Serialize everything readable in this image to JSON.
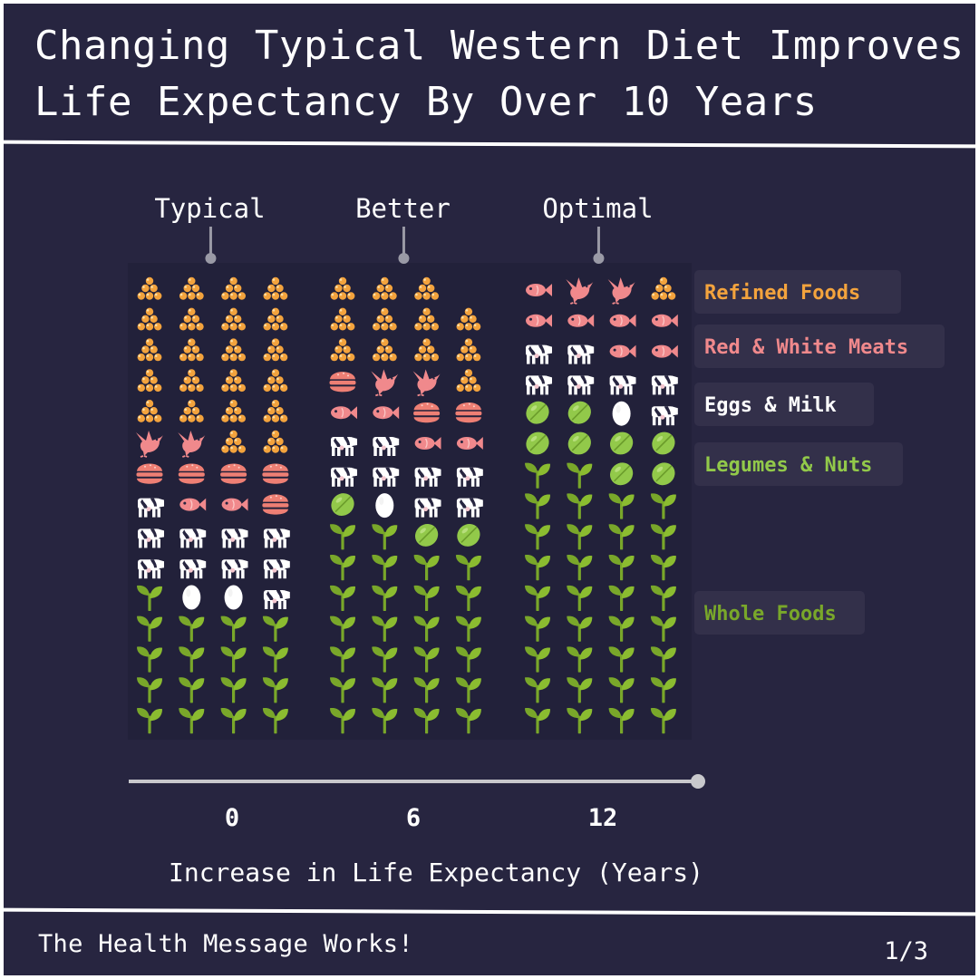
{
  "title_line1": "Changing Typical Western Diet Improves",
  "title_line2": "Life Expectancy By Over 10 Years",
  "footer": "The Health Message Works!",
  "page": "1/3",
  "chart_data": {
    "type": "waffle",
    "xlabel": "Increase in Life Expectancy (Years)",
    "x_ticks": [
      0,
      6,
      12
    ],
    "x_max": 12.5,
    "rows": 15,
    "cols_per_group": 4,
    "categories": [
      {
        "key": "refined",
        "name": "Refined Foods",
        "color": "#f3a33d",
        "icon": "grain-pile-icon"
      },
      {
        "key": "meat",
        "name": "Red & White Meats",
        "color": "#f0898c",
        "icon": "meat-icon"
      },
      {
        "key": "eggs",
        "name": "Eggs & Milk",
        "color": "#ffffff",
        "icon": "cow-icon"
      },
      {
        "key": "legumes",
        "name": "Legumes & Nuts",
        "color": "#92c94a",
        "icon": "lime-icon"
      },
      {
        "key": "whole",
        "name": "Whole Foods",
        "color": "#79a72a",
        "icon": "sprout-icon"
      }
    ],
    "groups": [
      {
        "name": "Typical",
        "x": 0,
        "counts": {
          "refined": 18,
          "meat": 10,
          "eggs": 10,
          "legumes": 2,
          "whole": 20
        },
        "grid": [
          [
            "G",
            "G",
            "G",
            "G"
          ],
          [
            "G",
            "G",
            "G",
            "G"
          ],
          [
            "G",
            "G",
            "G",
            "G"
          ],
          [
            "G",
            "G",
            "G",
            "G"
          ],
          [
            "G",
            "G",
            "G",
            "G"
          ],
          [
            "P",
            "P",
            "G",
            "G"
          ],
          [
            "B",
            "B",
            "B",
            "B"
          ],
          [
            "C",
            "F",
            "F",
            "B"
          ],
          [
            "C",
            "C",
            "C",
            "C"
          ],
          [
            "C",
            "C",
            "C",
            "C"
          ],
          [
            "S",
            "E",
            "E",
            "C"
          ],
          [
            "S",
            "S",
            "S",
            "S"
          ],
          [
            "S",
            "S",
            "S",
            "S"
          ],
          [
            "S",
            "S",
            "S",
            "S"
          ],
          [
            "S",
            "S",
            "S",
            "S"
          ]
        ]
      },
      {
        "name": "Better",
        "x": 6,
        "counts": {
          "refined": 11,
          "meat": 12,
          "eggs": 10,
          "legumes": 3,
          "whole": 23
        },
        "grid": [
          [
            "G",
            "G",
            "G",
            "-"
          ],
          [
            "G",
            "G",
            "G",
            "G"
          ],
          [
            "G",
            "G",
            "G",
            "G"
          ],
          [
            "B",
            "P",
            "P",
            "G"
          ],
          [
            "F",
            "F",
            "B",
            "B"
          ],
          [
            "C",
            "C",
            "F",
            "F"
          ],
          [
            "C",
            "C",
            "C",
            "C"
          ],
          [
            "L",
            "E",
            "C",
            "C"
          ],
          [
            "S",
            "S",
            "L",
            "L"
          ],
          [
            "S",
            "S",
            "S",
            "S"
          ],
          [
            "S",
            "S",
            "S",
            "S"
          ],
          [
            "S",
            "S",
            "S",
            "S"
          ],
          [
            "S",
            "S",
            "S",
            "S"
          ],
          [
            "S",
            "S",
            "S",
            "S"
          ],
          [
            "S",
            "S",
            "S",
            "S"
          ]
        ]
      },
      {
        "name": "Optimal",
        "x": 12,
        "counts": {
          "refined": 1,
          "meat": 11,
          "eggs": 8,
          "legumes": 9,
          "whole": 31
        },
        "grid": [
          [
            "F",
            "P",
            "P",
            "G"
          ],
          [
            "F",
            "F",
            "F",
            "F"
          ],
          [
            "C",
            "C",
            "F",
            "F"
          ],
          [
            "C",
            "C",
            "C",
            "C"
          ],
          [
            "L",
            "L",
            "E",
            "C"
          ],
          [
            "L",
            "L",
            "L",
            "L"
          ],
          [
            "S",
            "S",
            "L",
            "L"
          ],
          [
            "S",
            "S",
            "S",
            "S"
          ],
          [
            "S",
            "S",
            "S",
            "S"
          ],
          [
            "S",
            "S",
            "S",
            "S"
          ],
          [
            "S",
            "S",
            "S",
            "S"
          ],
          [
            "S",
            "S",
            "S",
            "S"
          ],
          [
            "S",
            "S",
            "S",
            "S"
          ],
          [
            "S",
            "S",
            "S",
            "S"
          ],
          [
            "S",
            "S",
            "S",
            "S"
          ]
        ]
      }
    ]
  }
}
